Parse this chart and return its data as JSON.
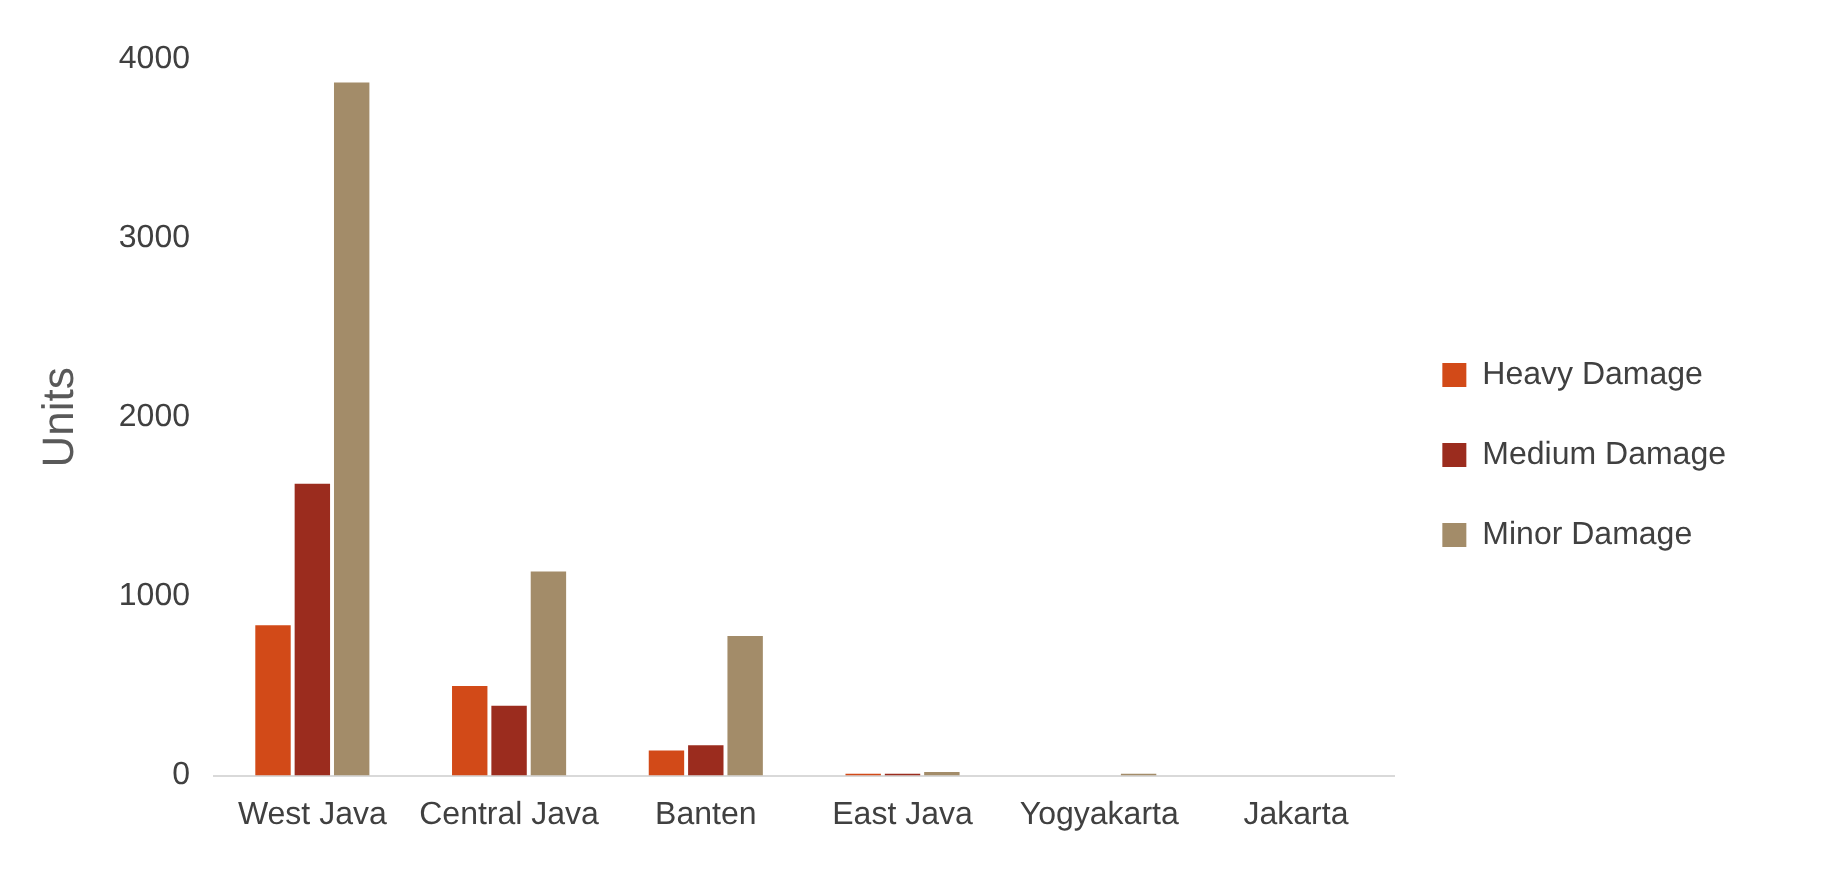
{
  "chart_data": {
    "type": "bar",
    "ylabel": "Units",
    "categories": [
      "West Java",
      "Central Java",
      "Banten",
      "East Java",
      "Yogyakarta",
      "Jakarta"
    ],
    "series": [
      {
        "name": "Heavy Damage",
        "color": "#d24a18",
        "values": [
          840,
          500,
          140,
          10,
          0,
          0
        ]
      },
      {
        "name": "Medium Damage",
        "color": "#9b2c1e",
        "values": [
          1630,
          390,
          170,
          10,
          0,
          0
        ]
      },
      {
        "name": "Minor Damage",
        "color": "#a38c69",
        "values": [
          3870,
          1140,
          780,
          20,
          10,
          0
        ]
      }
    ],
    "ylim": [
      0,
      4000
    ],
    "yticks": [
      0,
      1000,
      2000,
      3000,
      4000
    ],
    "grid": false,
    "legend": "right"
  }
}
